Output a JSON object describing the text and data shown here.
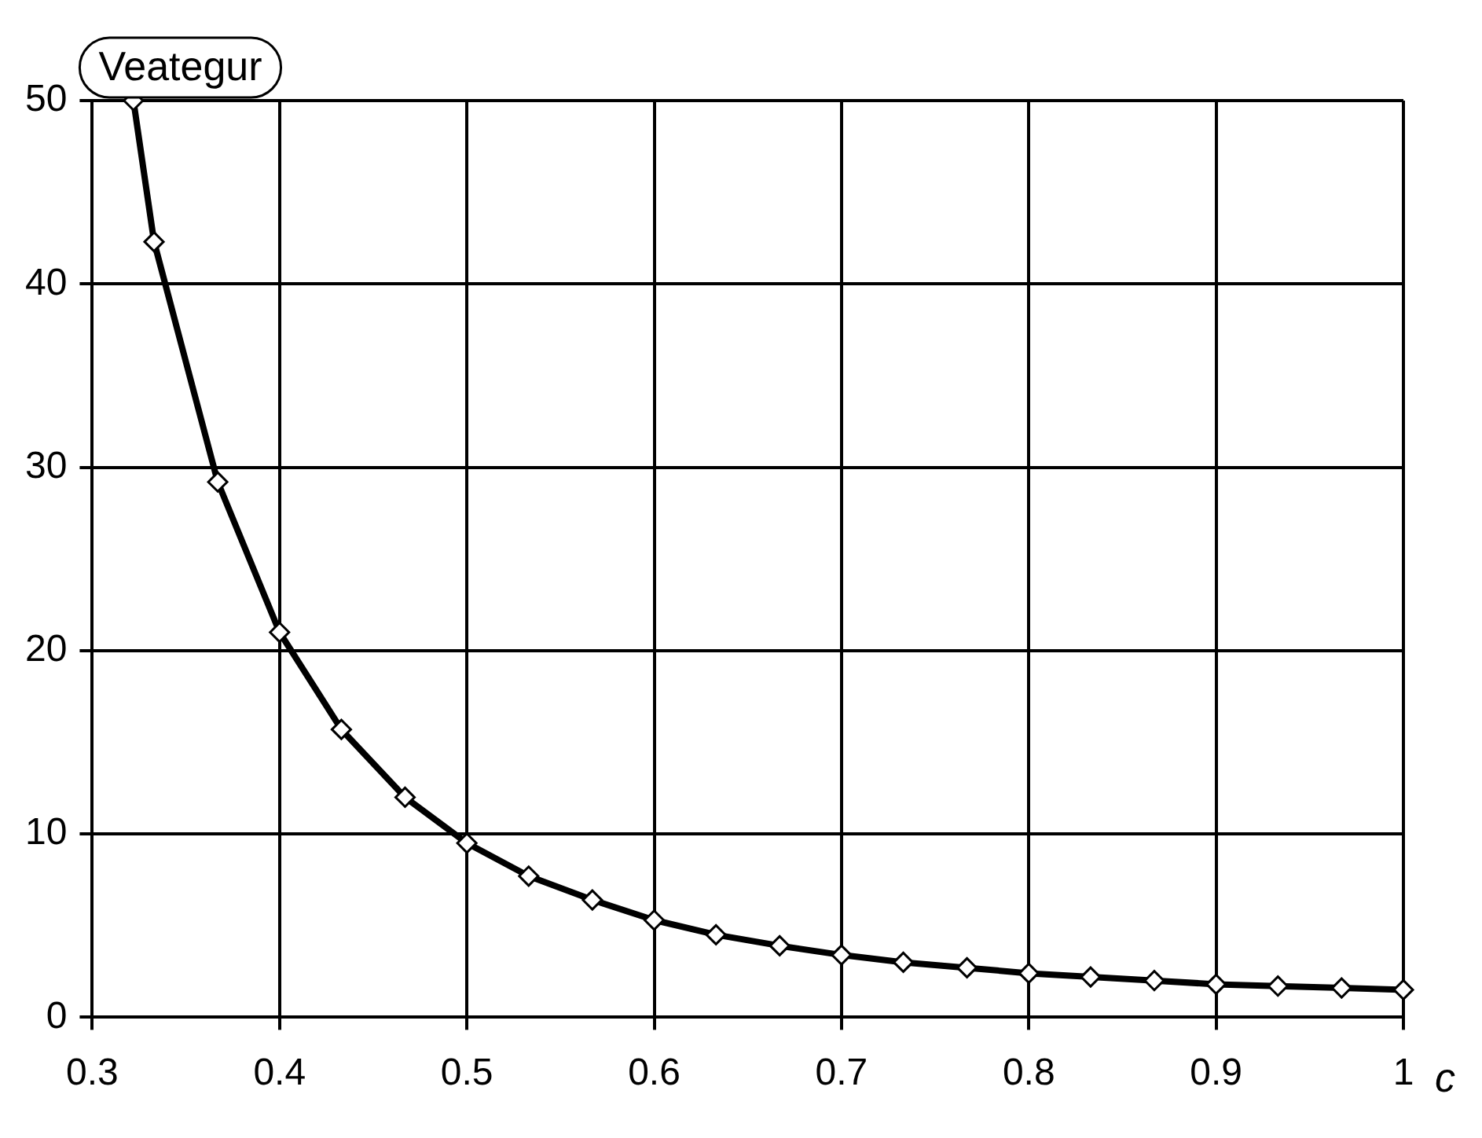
{
  "chart_data": {
    "type": "line",
    "ylabel": "Veategur",
    "xlabel": "c",
    "series": [
      {
        "color": "#000000",
        "x": [
          0.322,
          0.333,
          0.367,
          0.4,
          0.433,
          0.467,
          0.5,
          0.533,
          0.567,
          0.6,
          0.633,
          0.667,
          0.7,
          0.733,
          0.767,
          0.8,
          0.833,
          0.867,
          0.9,
          0.933,
          0.967,
          1.0
        ],
        "values": [
          50,
          42.3,
          29.2,
          21.0,
          15.7,
          12.0,
          9.5,
          7.7,
          6.4,
          5.3,
          4.5,
          3.9,
          3.4,
          3.0,
          2.7,
          2.4,
          2.2,
          2.0,
          1.8,
          1.7,
          1.6,
          1.5
        ]
      }
    ],
    "xlim": [
      0.3,
      1
    ],
    "xticks": [
      0.3,
      0.4,
      0.5,
      0.6,
      0.7,
      0.8,
      0.9,
      1
    ],
    "ylim": [
      0,
      50
    ],
    "yticks": [
      0,
      10,
      20,
      30,
      40,
      50
    ],
    "grid": true,
    "marker": "diamond",
    "line_style": "solid"
  }
}
